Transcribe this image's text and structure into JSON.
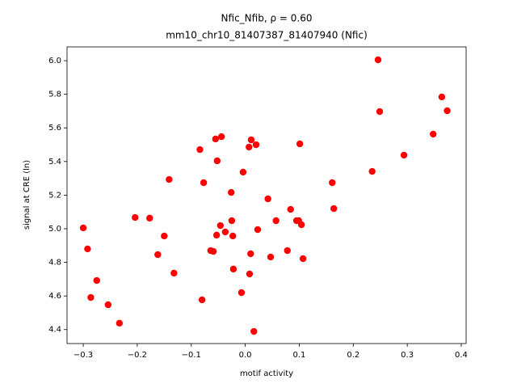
{
  "chart_data": {
    "type": "scatter",
    "title": "Nfic_Nfib, ρ = 0.60",
    "subtitle": "mm10_chr10_81407387_81407940 (Nfic)",
    "x_label": "motif activity",
    "y_label": "signal at CRE (ln)",
    "color": "#ff0000",
    "xlim": [
      -0.33,
      0.409
    ],
    "ylim": [
      4.317,
      6.082
    ],
    "xticks": [
      {
        "value": -0.3,
        "label": "−0.3"
      },
      {
        "value": -0.2,
        "label": "−0.2"
      },
      {
        "value": -0.1,
        "label": "−0.1"
      },
      {
        "value": 0,
        "label": "0.0"
      },
      0.1,
      0.2,
      0.3,
      0.4
    ],
    "yticks": [
      4.4,
      4.6,
      4.8,
      {
        "value": 5,
        "label": "5.0"
      },
      5.2,
      5.4,
      5.6,
      5.8,
      {
        "value": 6,
        "label": "6.0"
      }
    ],
    "x": [
      -0.3,
      -0.286,
      -0.275,
      -0.292,
      -0.254,
      -0.233,
      -0.204,
      -0.177,
      -0.15,
      -0.162,
      -0.141,
      -0.132,
      -0.084,
      -0.077,
      -0.08,
      -0.064,
      -0.059,
      -0.055,
      -0.044,
      -0.052,
      -0.053,
      -0.046,
      -0.037,
      -0.026,
      -0.025,
      -0.023,
      -0.022,
      -0.004,
      -0.007,
      0.007,
      0.011,
      0.02,
      0.01,
      0.008,
      0.023,
      0.016,
      0.042,
      0.047,
      0.057,
      0.078,
      0.084,
      0.095,
      0.099,
      0.101,
      0.104,
      0.107,
      0.161,
      0.164,
      0.235,
      0.246,
      0.249,
      0.294,
      0.348,
      0.364,
      0.374
    ],
    "values": [
      5.005,
      4.591,
      4.692,
      4.88,
      4.548,
      4.438,
      5.067,
      5.063,
      4.957,
      4.846,
      5.293,
      4.736,
      5.471,
      5.274,
      4.577,
      4.87,
      4.865,
      5.534,
      5.548,
      5.404,
      4.962,
      5.019,
      4.981,
      5.216,
      5.048,
      4.957,
      4.76,
      5.337,
      4.62,
      5.486,
      5.529,
      5.5,
      4.851,
      4.731,
      4.995,
      4.389,
      5.178,
      4.832,
      5.048,
      4.87,
      5.115,
      5.048,
      5.048,
      5.505,
      5.024,
      4.822,
      5.274,
      5.12,
      5.341,
      6.005,
      5.697,
      5.438,
      5.563,
      5.784,
      5.702
    ]
  }
}
